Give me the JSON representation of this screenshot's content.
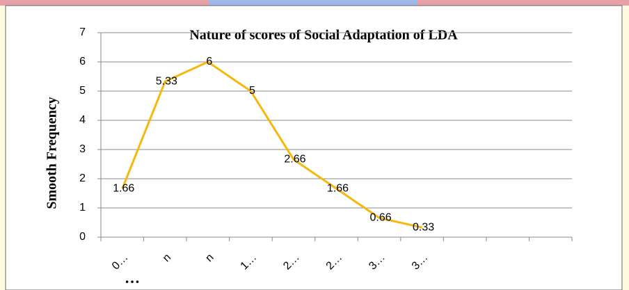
{
  "chart_data": {
    "type": "line",
    "title": "Nature of scores of Social Adaptation of LDA",
    "y_label": "Smooth Frequency",
    "x_label": "…",
    "categories": [
      "0…",
      "n",
      "n",
      "1…",
      "2…",
      "2…",
      "3…",
      "3…",
      null,
      null,
      null
    ],
    "values": [
      1.66,
      5.33,
      6,
      5,
      2.66,
      1.66,
      0.66,
      0.33,
      null,
      null,
      null
    ],
    "color": "#f5b80b",
    "ylim": [
      0,
      7
    ],
    "yticks": [
      0,
      1,
      2,
      3,
      4,
      5,
      6,
      7
    ],
    "grid": true
  }
}
